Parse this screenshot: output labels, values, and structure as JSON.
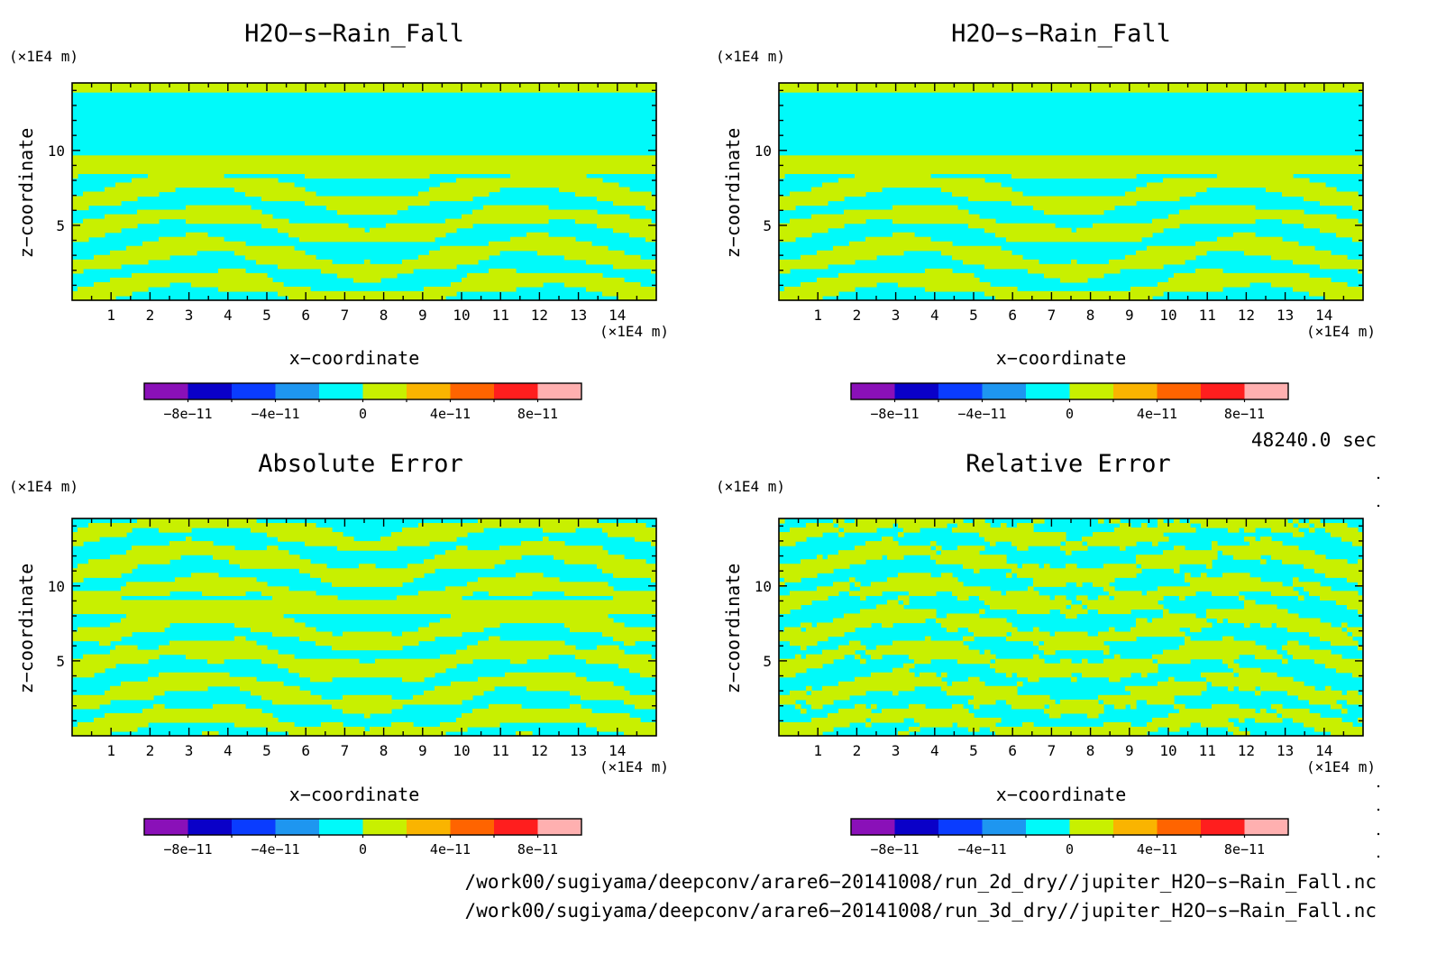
{
  "panels": [
    {
      "title": "H2O−s−Rain_Fall",
      "field": "a"
    },
    {
      "title": "H2O−s−Rain_Fall",
      "field": "a"
    },
    {
      "title": "Absolute Error",
      "field": "b"
    },
    {
      "title": "Relative Error",
      "field": "c"
    }
  ],
  "axes": {
    "y_unit": "(×1E4 m)",
    "x_unit": "(×1E4 m)",
    "xlabel": "x−coordinate",
    "ylabel": "z−coordinate",
    "x_ticks": [
      "1",
      "2",
      "3",
      "4",
      "5",
      "6",
      "7",
      "8",
      "9",
      "10",
      "11",
      "12",
      "13",
      "14"
    ],
    "y_ticks": [
      "5",
      "10"
    ]
  },
  "colorbar": {
    "colors": [
      "#8a10b8",
      "#0a00c8",
      "#0a3cff",
      "#1e96f0",
      "#00fafa",
      "#c8f000",
      "#fab400",
      "#ff6400",
      "#ff1e1e",
      "#ffb0b0"
    ],
    "labels": [
      "−8e−11",
      "−4e−11",
      "0",
      "4e−11",
      "8e−11"
    ]
  },
  "time_label": "48240.0 sec",
  "footer": [
    "/work00/sugiyama/deepconv/arare6−20141008/run_2d_dry//jupiter_H2O−s−Rain_Fall.nc",
    "/work00/sugiyama/deepconv/arare6−20141008/run_3d_dry//jupiter_H2O−s−Rain_Fall.nc"
  ],
  "chart_data": {
    "type": "heatmap",
    "x_range": [
      0,
      15
    ],
    "y_range": [
      0,
      14.5
    ],
    "color_levels": [
      -1e-10,
      -8e-11,
      -6e-11,
      -4e-11,
      -2e-11,
      0,
      2e-11,
      4e-11,
      6e-11,
      8e-11,
      1e-10
    ],
    "field_values_shown": [
      -1e-11,
      1e-11
    ],
    "colors_used": [
      "#00fafa",
      "#c8f000"
    ]
  }
}
